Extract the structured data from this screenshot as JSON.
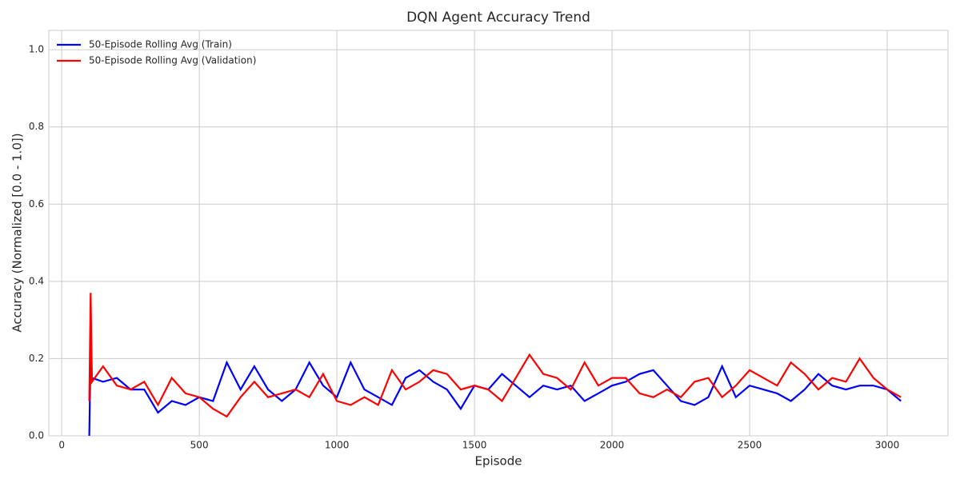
{
  "chart_data": {
    "type": "line",
    "title": "DQN Agent Accuracy Trend",
    "x_label": "Episode",
    "y_label": "Accuracy (Normalized [0.0 - 1.0])",
    "x": [
      100,
      105,
      110,
      150,
      200,
      250,
      300,
      350,
      400,
      450,
      500,
      550,
      600,
      650,
      700,
      750,
      800,
      850,
      900,
      950,
      1000,
      1050,
      1100,
      1150,
      1200,
      1250,
      1300,
      1350,
      1400,
      1450,
      1500,
      1550,
      1600,
      1650,
      1700,
      1750,
      1800,
      1850,
      1900,
      1950,
      2000,
      2050,
      2100,
      2150,
      2200,
      2250,
      2300,
      2350,
      2400,
      2450,
      2500,
      2550,
      2600,
      2650,
      2700,
      2750,
      2800,
      2850,
      2900,
      2950,
      3000,
      3050
    ],
    "series": [
      {
        "name": "50-Episode Rolling Avg (Train)",
        "color": "#0000ff",
        "values": [
          0.0,
          0.22,
          0.15,
          0.14,
          0.15,
          0.12,
          0.12,
          0.06,
          0.09,
          0.08,
          0.1,
          0.09,
          0.19,
          0.12,
          0.18,
          0.12,
          0.09,
          0.12,
          0.19,
          0.13,
          0.1,
          0.19,
          0.12,
          0.1,
          0.08,
          0.15,
          0.17,
          0.14,
          0.12,
          0.07,
          0.13,
          0.12,
          0.16,
          0.13,
          0.1,
          0.13,
          0.12,
          0.13,
          0.09,
          0.11,
          0.13,
          0.14,
          0.16,
          0.17,
          0.13,
          0.09,
          0.08,
          0.1,
          0.18,
          0.1,
          0.13,
          0.12,
          0.11,
          0.09,
          0.12,
          0.16,
          0.13,
          0.12,
          0.13,
          0.13,
          0.12,
          0.09
        ]
      },
      {
        "name": "50-Episode Rolling Avg (Validation)",
        "color": "#ff0000",
        "values": [
          0.09,
          0.37,
          0.14,
          0.18,
          0.13,
          0.12,
          0.14,
          0.08,
          0.15,
          0.11,
          0.1,
          0.07,
          0.05,
          0.1,
          0.14,
          0.1,
          0.11,
          0.12,
          0.1,
          0.16,
          0.09,
          0.08,
          0.1,
          0.08,
          0.17,
          0.12,
          0.14,
          0.17,
          0.16,
          0.12,
          0.13,
          0.12,
          0.09,
          0.15,
          0.21,
          0.16,
          0.15,
          0.12,
          0.19,
          0.13,
          0.15,
          0.15,
          0.11,
          0.1,
          0.12,
          0.1,
          0.14,
          0.15,
          0.1,
          0.13,
          0.17,
          0.15,
          0.13,
          0.19,
          0.16,
          0.12,
          0.15,
          0.14,
          0.2,
          0.15,
          0.12,
          0.1
        ]
      }
    ],
    "xlim": [
      -47,
      3221
    ],
    "ylim": [
      0,
      1.05
    ],
    "xticks": [
      0,
      500,
      1000,
      1500,
      2000,
      2500,
      3000
    ],
    "yticks": [
      {
        "value": 0,
        "label": "0.0"
      },
      {
        "value": 0.2,
        "label": "0.2"
      },
      {
        "value": 0.4,
        "label": "0.4"
      },
      {
        "value": 0.6,
        "label": "0.6"
      },
      {
        "value": 0.8,
        "label": "0.8"
      },
      {
        "value": 1.0,
        "label": "1.0"
      }
    ],
    "grid": true,
    "legend": "upper-left"
  }
}
